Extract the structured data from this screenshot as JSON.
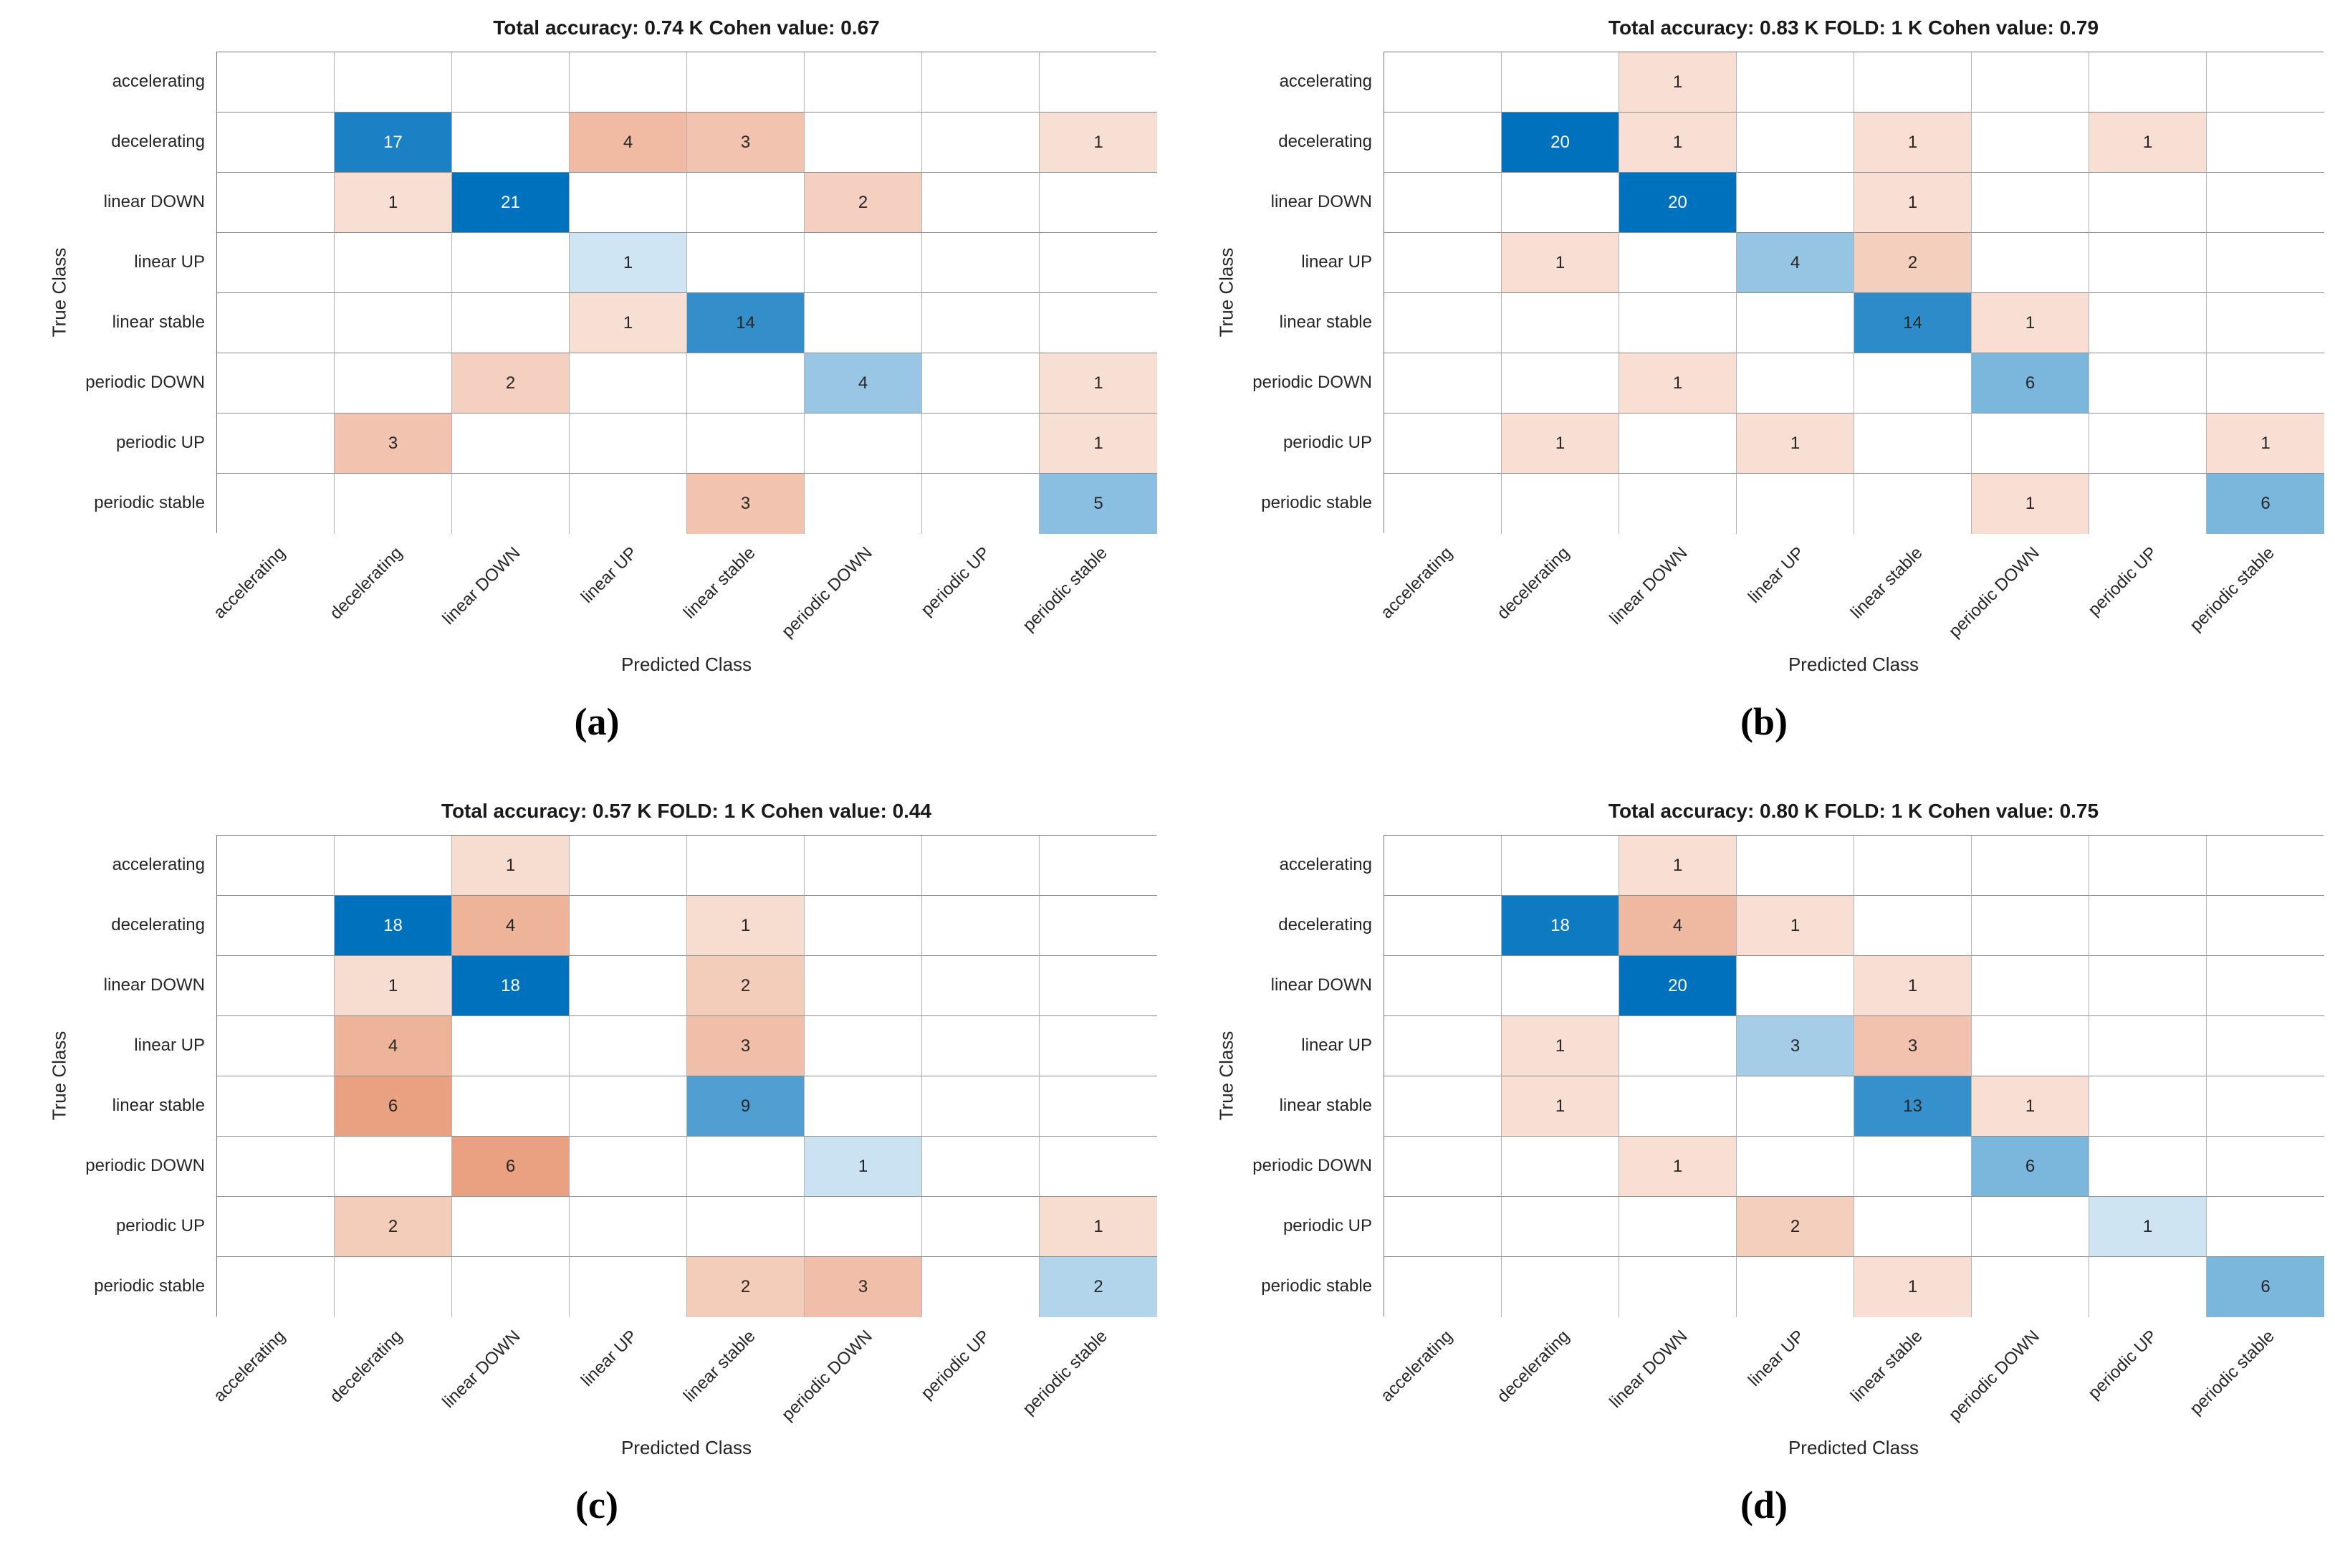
{
  "figure": {
    "background": "#ffffff",
    "colors": {
      "diagonal_full": "#0072BD",
      "offdiagonal_full": "#D95319",
      "cell_text_dark": "#262626",
      "cell_text_light": "#ffffff",
      "grid_line_vertical": "#b4b4b4",
      "grid_line_horizontal": "#8c8c8c",
      "grid_border": "#767676"
    }
  },
  "chart_data": [
    {
      "type": "heatmap",
      "caption": "(a)",
      "title": "Total accuracy: 0.74 K Cohen value: 0.67",
      "total_accuracy": 0.74,
      "k_cohen_value": 0.67,
      "xlabel": "Predicted Class",
      "ylabel": "True Class",
      "categories": [
        "accelerating",
        "decelerating",
        "linear DOWN",
        "linear UP",
        "linear stable",
        "periodic DOWN",
        "periodic UP",
        "periodic stable"
      ],
      "matrix": [
        [
          0,
          0,
          0,
          0,
          0,
          0,
          0,
          0
        ],
        [
          0,
          17,
          0,
          4,
          3,
          0,
          0,
          1
        ],
        [
          0,
          1,
          21,
          0,
          0,
          2,
          0,
          0
        ],
        [
          0,
          0,
          0,
          1,
          0,
          0,
          0,
          0
        ],
        [
          0,
          0,
          0,
          1,
          14,
          0,
          0,
          0
        ],
        [
          0,
          0,
          2,
          0,
          0,
          4,
          0,
          1
        ],
        [
          0,
          3,
          0,
          0,
          0,
          0,
          0,
          1
        ],
        [
          0,
          0,
          0,
          0,
          3,
          0,
          0,
          5
        ]
      ]
    },
    {
      "type": "heatmap",
      "caption": "(b)",
      "title": "Total accuracy: 0.83 K FOLD: 1 K Cohen value: 0.79",
      "total_accuracy": 0.83,
      "k_fold": 1,
      "k_cohen_value": 0.79,
      "xlabel": "Predicted Class",
      "ylabel": "True Class",
      "categories": [
        "accelerating",
        "decelerating",
        "linear DOWN",
        "linear UP",
        "linear stable",
        "periodic DOWN",
        "periodic UP",
        "periodic stable"
      ],
      "matrix": [
        [
          0,
          0,
          1,
          0,
          0,
          0,
          0,
          0
        ],
        [
          0,
          20,
          1,
          0,
          1,
          0,
          1,
          0
        ],
        [
          0,
          0,
          20,
          0,
          1,
          0,
          0,
          0
        ],
        [
          0,
          1,
          0,
          4,
          2,
          0,
          0,
          0
        ],
        [
          0,
          0,
          0,
          0,
          14,
          1,
          0,
          0
        ],
        [
          0,
          0,
          1,
          0,
          0,
          6,
          0,
          0
        ],
        [
          0,
          1,
          0,
          1,
          0,
          0,
          0,
          1
        ],
        [
          0,
          0,
          0,
          0,
          0,
          1,
          0,
          6
        ]
      ]
    },
    {
      "type": "heatmap",
      "caption": "(c)",
      "title": "Total accuracy: 0.57 K FOLD: 1 K Cohen value: 0.44",
      "total_accuracy": 0.57,
      "k_fold": 1,
      "k_cohen_value": 0.44,
      "xlabel": "Predicted Class",
      "ylabel": "True Class",
      "categories": [
        "accelerating",
        "decelerating",
        "linear DOWN",
        "linear UP",
        "linear stable",
        "periodic DOWN",
        "periodic UP",
        "periodic stable"
      ],
      "matrix": [
        [
          0,
          0,
          1,
          0,
          0,
          0,
          0,
          0
        ],
        [
          0,
          18,
          4,
          0,
          1,
          0,
          0,
          0
        ],
        [
          0,
          1,
          18,
          0,
          2,
          0,
          0,
          0
        ],
        [
          0,
          4,
          0,
          0,
          3,
          0,
          0,
          0
        ],
        [
          0,
          6,
          0,
          0,
          9,
          0,
          0,
          0
        ],
        [
          0,
          0,
          6,
          0,
          0,
          1,
          0,
          0
        ],
        [
          0,
          2,
          0,
          0,
          0,
          0,
          0,
          1
        ],
        [
          0,
          0,
          0,
          0,
          2,
          3,
          0,
          2
        ]
      ]
    },
    {
      "type": "heatmap",
      "caption": "(d)",
      "title": "Total accuracy: 0.80 K FOLD: 1 K Cohen value: 0.75",
      "total_accuracy": 0.8,
      "k_fold": 1,
      "k_cohen_value": 0.75,
      "xlabel": "Predicted Class",
      "ylabel": "True Class",
      "categories": [
        "accelerating",
        "decelerating",
        "linear DOWN",
        "linear UP",
        "linear stable",
        "periodic DOWN",
        "periodic UP",
        "periodic stable"
      ],
      "matrix": [
        [
          0,
          0,
          1,
          0,
          0,
          0,
          0,
          0
        ],
        [
          0,
          18,
          4,
          1,
          0,
          0,
          0,
          0
        ],
        [
          0,
          0,
          20,
          0,
          1,
          0,
          0,
          0
        ],
        [
          0,
          1,
          0,
          3,
          3,
          0,
          0,
          0
        ],
        [
          0,
          1,
          0,
          0,
          13,
          1,
          0,
          0
        ],
        [
          0,
          0,
          1,
          0,
          0,
          6,
          0,
          0
        ],
        [
          0,
          0,
          0,
          2,
          0,
          0,
          1,
          0
        ],
        [
          0,
          0,
          0,
          0,
          1,
          0,
          0,
          6
        ]
      ]
    }
  ]
}
